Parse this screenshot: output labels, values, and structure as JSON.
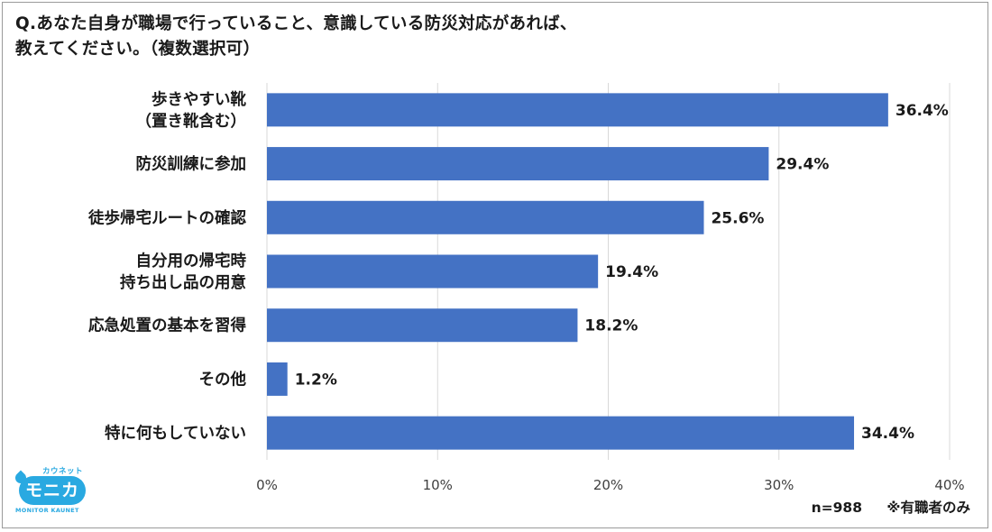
{
  "title": {
    "line1": "Q.あなた自身が職場で行っていること、意識している防災対応があれば、",
    "line2": "教えてください。（複数選択可）"
  },
  "note": {
    "sample": "n=988",
    "remark": "※有職者のみ"
  },
  "logo": {
    "top_text": "カウネット",
    "main_text": "モニカ",
    "bottom_text": "MONITOR KAUNET",
    "color": "#29a9e1"
  },
  "chart_data": {
    "type": "bar",
    "orientation": "horizontal",
    "title": "Q.あなた自身が職場で行っていること、意識している防災対応があれば、教えてください。（複数選択可）",
    "categories": [
      [
        "歩きやすい靴",
        "（置き靴含む）"
      ],
      [
        "防災訓練に参加"
      ],
      [
        "徒歩帰宅ルートの確認"
      ],
      [
        "自分用の帰宅時",
        "持ち出し品の用意"
      ],
      [
        "応急処置の基本を習得"
      ],
      [
        "その他"
      ],
      [
        "特に何もしていない"
      ]
    ],
    "values": [
      36.4,
      29.4,
      25.6,
      19.4,
      18.2,
      1.2,
      34.4
    ],
    "value_labels": [
      "36.4%",
      "29.4%",
      "25.6%",
      "19.4%",
      "18.2%",
      "1.2%",
      "34.4%"
    ],
    "xlim": [
      0,
      40
    ],
    "ticks": [
      0,
      10,
      20,
      30,
      40
    ],
    "tick_labels": [
      "0%",
      "10%",
      "20%",
      "30%",
      "40%"
    ],
    "xlabel": "",
    "ylabel": "",
    "grid": true,
    "bar_color": "#4472c4"
  }
}
